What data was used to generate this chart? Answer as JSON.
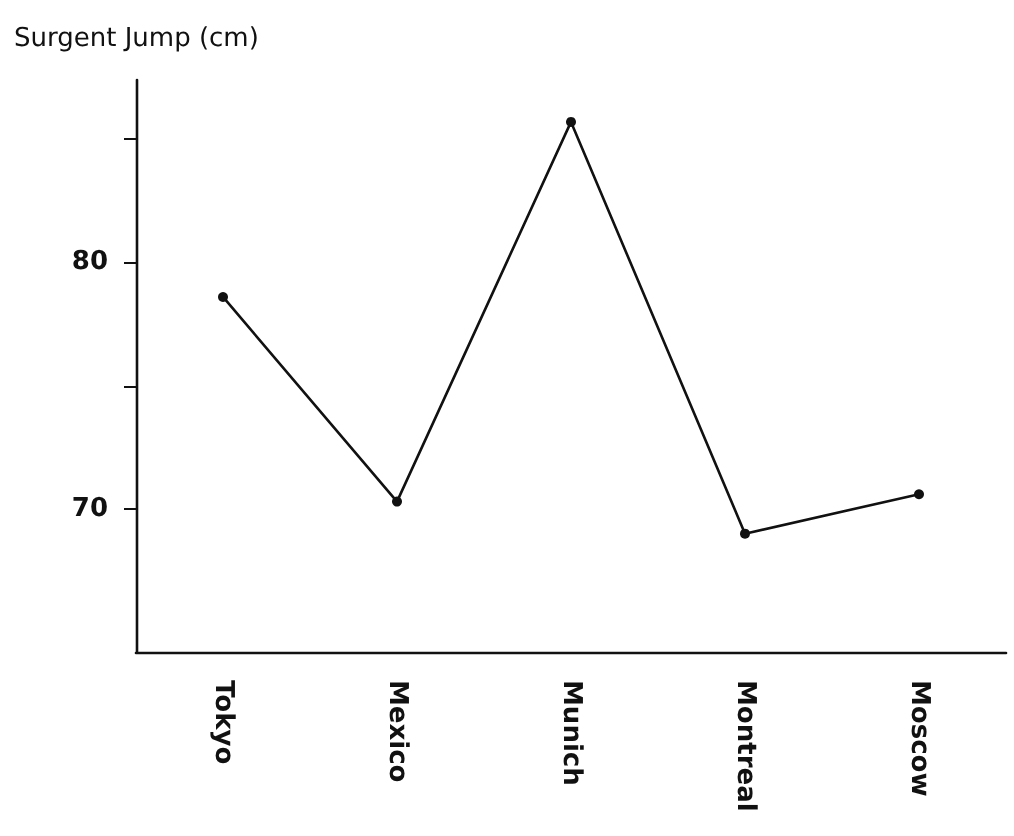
{
  "chart_data": {
    "type": "line",
    "ylabel": "Surgent Jump (cm)",
    "categories": [
      "Tokyo",
      "Mexico",
      "Munich",
      "Montreal",
      "Moscow"
    ],
    "series": [
      {
        "color": "#111111",
        "values": [
          78.6,
          70.3,
          85.7,
          69.0,
          70.6
        ]
      }
    ],
    "ylim": [
      64.2,
      87.4
    ],
    "yticks": [
      70,
      {
        "value": 75,
        "label": null
      },
      80,
      {
        "value": 85,
        "label": null
      }
    ],
    "marker": "circle",
    "line_style": "solid",
    "grid": false
  }
}
